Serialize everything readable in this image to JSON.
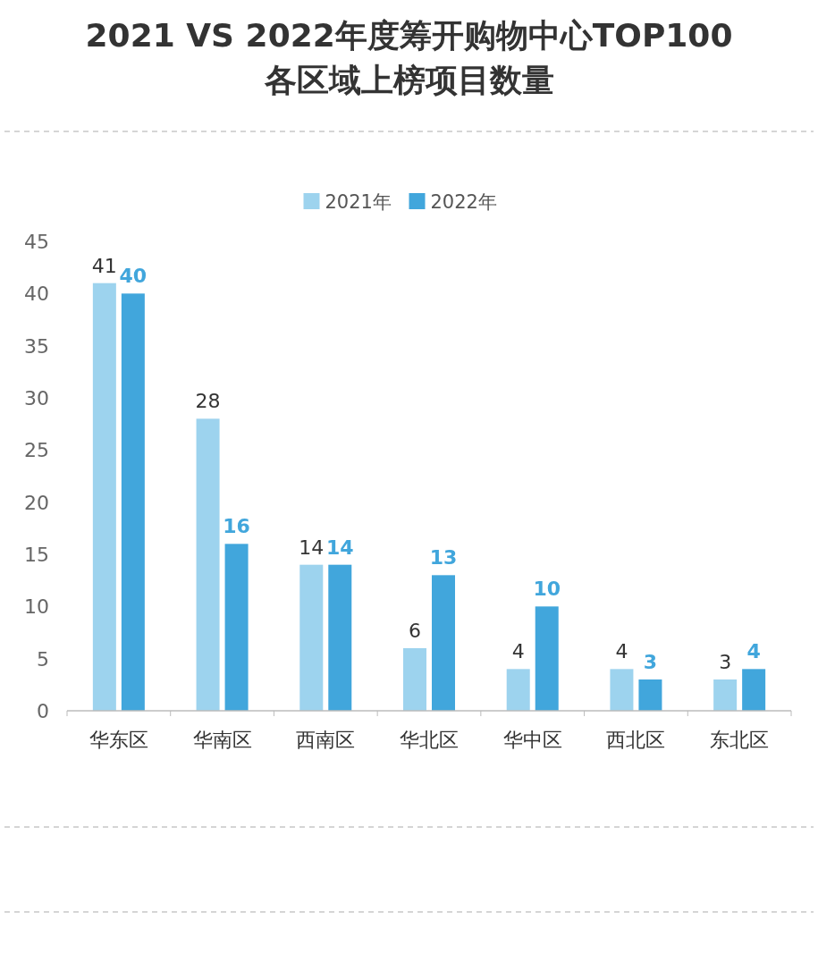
{
  "chart_data": {
    "type": "bar",
    "title": "2021 VS 2022年度筹开购物中心TOP100\n各区域上榜项目数量",
    "categories": [
      "华东区",
      "华南区",
      "西南区",
      "华北区",
      "华中区",
      "西北区",
      "东北区"
    ],
    "series": [
      {
        "name": "2021年",
        "color": "#9dd3ee",
        "values": [
          41,
          28,
          14,
          6,
          4,
          4,
          3
        ]
      },
      {
        "name": "2022年",
        "color": "#41a6dc",
        "values": [
          40,
          16,
          14,
          13,
          10,
          3,
          4
        ]
      }
    ],
    "ylim": [
      0,
      45
    ],
    "yticks": [
      0,
      5,
      10,
      15,
      20,
      25,
      30,
      35,
      40,
      45
    ],
    "grid": false,
    "legend": "top",
    "data_labels": true
  }
}
